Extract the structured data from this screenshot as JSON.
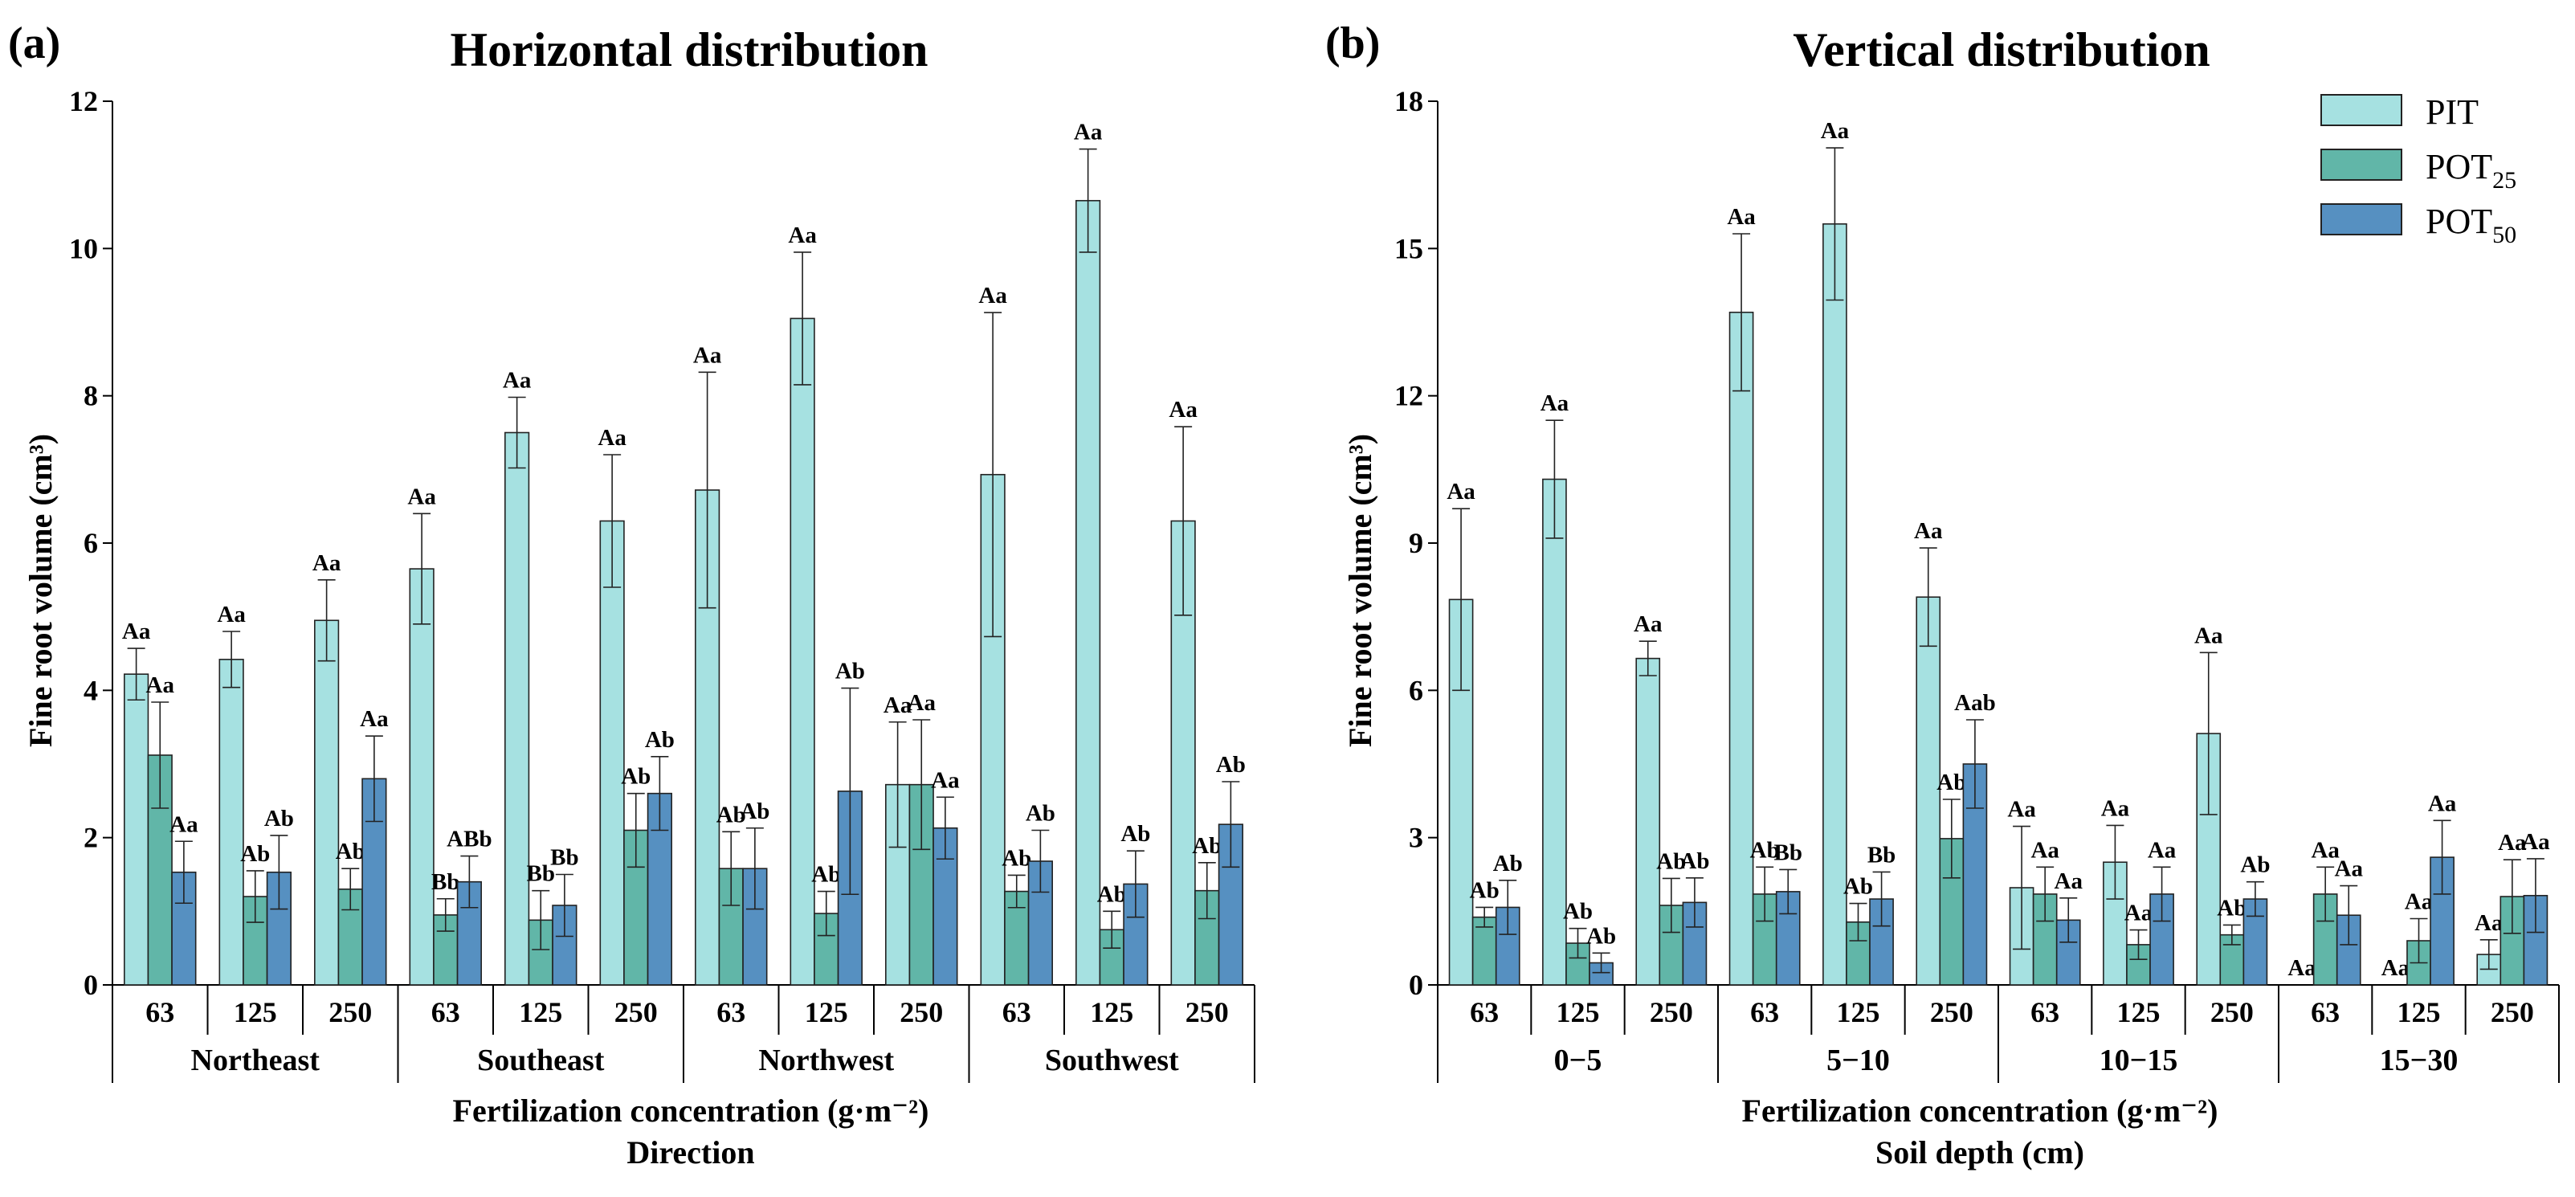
{
  "chart_data": [
    {
      "panel": "(a)",
      "type": "bar",
      "title": "Horizontal distribution",
      "ylabel": "Fine root volume (cm³)",
      "xlabel": "Fertilization concentration (g·m⁻²)",
      "xlabel2": "Direction",
      "ylim": [
        0,
        12
      ],
      "yticks": [
        0,
        2,
        4,
        6,
        8,
        10,
        12
      ],
      "groups": [
        "Northeast",
        "Southeast",
        "Northwest",
        "Southwest"
      ],
      "categories": [
        "63",
        "125",
        "250",
        "63",
        "125",
        "250",
        "63",
        "125",
        "250",
        "63",
        "125",
        "250"
      ],
      "series": [
        {
          "name": "PIT",
          "values": [
            4.22,
            4.42,
            4.95,
            5.65,
            7.5,
            6.3,
            6.72,
            9.05,
            2.72,
            6.93,
            10.65,
            6.3
          ],
          "errors": [
            0.35,
            0.38,
            0.55,
            0.75,
            0.48,
            0.9,
            1.6,
            0.9,
            0.85,
            2.2,
            0.7,
            1.28
          ],
          "labels": [
            "Aa",
            "Aa",
            "Aa",
            "Aa",
            "Aa",
            "Aa",
            "Aa",
            "Aa",
            "Aa",
            "Aa",
            "Aa",
            "Aa"
          ]
        },
        {
          "name": "POT₂₅",
          "values": [
            3.12,
            1.2,
            1.3,
            0.95,
            0.88,
            2.1,
            1.58,
            0.97,
            2.72,
            1.27,
            0.75,
            1.28
          ],
          "errors": [
            0.72,
            0.35,
            0.28,
            0.22,
            0.4,
            0.5,
            0.5,
            0.3,
            0.88,
            0.22,
            0.25,
            0.38
          ],
          "labels": [
            "Aa",
            "Ab",
            "Ab",
            "Bb",
            "Bb",
            "Ab",
            "Ab",
            "Ab",
            "Aa",
            "Ab",
            "Ab",
            "Ab"
          ]
        },
        {
          "name": "POT₅₀",
          "values": [
            1.53,
            1.53,
            2.8,
            1.4,
            1.08,
            2.6,
            1.58,
            2.63,
            2.13,
            1.68,
            1.37,
            2.18
          ],
          "errors": [
            0.42,
            0.5,
            0.58,
            0.35,
            0.42,
            0.5,
            0.55,
            1.4,
            0.42,
            0.42,
            0.45,
            0.58
          ],
          "labels": [
            "Aa",
            "Ab",
            "Aa",
            "ABb",
            "Bb",
            "Ab",
            "Ab",
            "Ab",
            "Aa",
            "Ab",
            "Ab",
            "Ab"
          ]
        }
      ]
    },
    {
      "panel": "(b)",
      "type": "bar",
      "title": "Vertical distribution",
      "ylabel": "Fine root volume (cm³)",
      "xlabel": "Fertilization concentration (g·m⁻²)",
      "xlabel2": "Soil depth (cm)",
      "ylim": [
        0,
        18
      ],
      "yticks": [
        0,
        3,
        6,
        9,
        12,
        15,
        18
      ],
      "groups": [
        "0−5",
        "5−10",
        "10−15",
        "15−30"
      ],
      "categories": [
        "63",
        "125",
        "250",
        "63",
        "125",
        "250",
        "63",
        "125",
        "250",
        "63",
        "125",
        "250"
      ],
      "series": [
        {
          "name": "PIT",
          "values": [
            7.85,
            10.3,
            6.65,
            13.7,
            15.5,
            7.9,
            1.98,
            2.5,
            5.12,
            0,
            0,
            0.62
          ],
          "errors": [
            1.85,
            1.2,
            0.35,
            1.6,
            1.55,
            1.0,
            1.25,
            0.75,
            1.65,
            0,
            0,
            0.3
          ],
          "labels": [
            "Aa",
            "Aa",
            "Aa",
            "Aa",
            "Aa",
            "Aa",
            "Aa",
            "Aa",
            "Aa",
            "Aa",
            "Aa",
            "Aa"
          ]
        },
        {
          "name": "POT₂₅",
          "values": [
            1.38,
            0.85,
            1.62,
            1.85,
            1.28,
            2.98,
            1.85,
            0.82,
            1.02,
            1.85,
            0.9,
            1.8
          ],
          "errors": [
            0.2,
            0.3,
            0.55,
            0.55,
            0.38,
            0.8,
            0.55,
            0.3,
            0.2,
            0.55,
            0.45,
            0.75
          ],
          "labels": [
            "Ab",
            "Ab",
            "Ab",
            "Ab",
            "Ab",
            "Ab",
            "Aa",
            "Aa",
            "Ab",
            "Aa",
            "Aa",
            "Aa"
          ]
        },
        {
          "name": "POT₅₀",
          "values": [
            1.58,
            0.45,
            1.68,
            1.9,
            1.75,
            4.5,
            1.32,
            1.85,
            1.75,
            1.42,
            2.6,
            1.82
          ],
          "errors": [
            0.55,
            0.2,
            0.5,
            0.45,
            0.55,
            0.9,
            0.45,
            0.55,
            0.35,
            0.6,
            0.75,
            0.75
          ],
          "labels": [
            "Ab",
            "Ab",
            "Ab",
            "Bb",
            "Bb",
            "Aab",
            "Aa",
            "Aa",
            "Ab",
            "Aa",
            "Aa",
            "Aa"
          ]
        }
      ]
    }
  ],
  "legend": [
    {
      "label": "PIT",
      "main": "PIT",
      "sub": ""
    },
    {
      "label": "POT25",
      "main": "POT",
      "sub": "25"
    },
    {
      "label": "POT50",
      "main": "POT",
      "sub": "50"
    }
  ],
  "colors": {
    "PIT": "#a6e1e1",
    "POT25": "#61b6a8",
    "POT50": "#5690c1"
  }
}
